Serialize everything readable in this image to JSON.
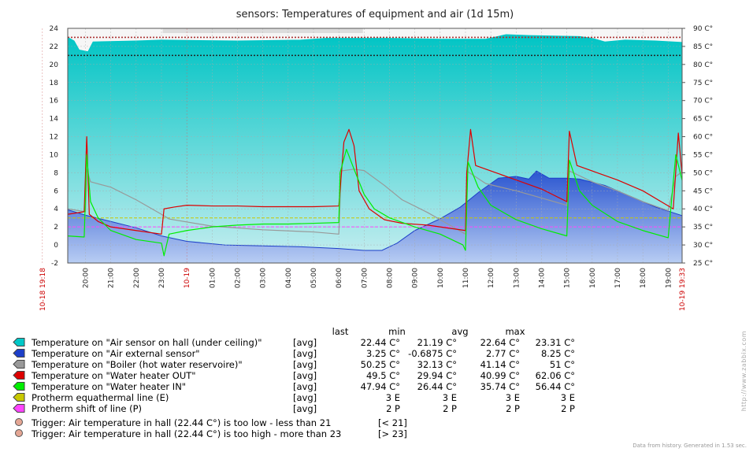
{
  "chart_data": {
    "type": "line",
    "title": "sensors: Temperatures of equipment and air (1d 15m)",
    "left_axis": {
      "min": -2,
      "max": 24,
      "step": 2,
      "ticks": [
        "-2",
        "0",
        "2",
        "4",
        "6",
        "8",
        "10",
        "12",
        "14",
        "16",
        "18",
        "20",
        "22",
        "24"
      ]
    },
    "right_axis": {
      "min": 25,
      "max": 90,
      "step": 5,
      "ticks": [
        "25 C°",
        "30 C°",
        "35 C°",
        "40 C°",
        "45 C°",
        "50 C°",
        "55 C°",
        "60 C°",
        "65 C°",
        "70 C°",
        "75 C°",
        "80 C°",
        "85 C°",
        "90 C°"
      ]
    },
    "x_ticks": [
      {
        "h": 18.3,
        "label": "10-18 19:18",
        "red": true
      },
      {
        "h": 20,
        "label": "20:00"
      },
      {
        "h": 21,
        "label": "21:00"
      },
      {
        "h": 22,
        "label": "22:00"
      },
      {
        "h": 23,
        "label": "23:00"
      },
      {
        "h": 24,
        "label": "10-19",
        "red": true
      },
      {
        "h": 25,
        "label": "01:00"
      },
      {
        "h": 26,
        "label": "02:00"
      },
      {
        "h": 27,
        "label": "03:00"
      },
      {
        "h": 28,
        "label": "04:00"
      },
      {
        "h": 29,
        "label": "05:00"
      },
      {
        "h": 30,
        "label": "06:00"
      },
      {
        "h": 31,
        "label": "07:00"
      },
      {
        "h": 32,
        "label": "08:00"
      },
      {
        "h": 33,
        "label": "09:00"
      },
      {
        "h": 34,
        "label": "10:00"
      },
      {
        "h": 35,
        "label": "11:00"
      },
      {
        "h": 36,
        "label": "12:00"
      },
      {
        "h": 37,
        "label": "13:00"
      },
      {
        "h": 38,
        "label": "14:00"
      },
      {
        "h": 39,
        "label": "15:00"
      },
      {
        "h": 40,
        "label": "16:00"
      },
      {
        "h": 41,
        "label": "17:00"
      },
      {
        "h": 42,
        "label": "18:00"
      },
      {
        "h": 43,
        "label": "19:00"
      },
      {
        "h": 43.55,
        "label": "10-19 19:33",
        "red": true
      }
    ],
    "x_range": [
      19.3,
      43.55
    ],
    "triggers": [
      {
        "value": 21,
        "axis": "left",
        "label": "Trigger: Air temperature in hall (22.44 C°) is too low - less than 21",
        "cond": "[< 21]"
      },
      {
        "value": 23,
        "axis": "left",
        "label": "Trigger: Air temperature in hall (22.44 C°) is too high - more than 23",
        "cond": "[> 23]"
      }
    ],
    "headers": [
      "last",
      "min",
      "avg",
      "max"
    ],
    "series": [
      {
        "name": "Temperature on \"Air sensor on hall (under ceiling)\"",
        "fn": "[avg]",
        "color": "#00c8c8",
        "axis": "left",
        "style": "area",
        "last": "22.44 C°",
        "min": "21.19 C°",
        "avg": "22.64 C°",
        "max": "23.31 C°",
        "points": [
          [
            19.3,
            23.0
          ],
          [
            19.55,
            22.6
          ],
          [
            19.75,
            21.6
          ],
          [
            20.1,
            21.4
          ],
          [
            20.3,
            22.5
          ],
          [
            22.0,
            22.6
          ],
          [
            23.0,
            22.7
          ],
          [
            26.0,
            22.6
          ],
          [
            28.5,
            22.7
          ],
          [
            29.5,
            22.9
          ],
          [
            32.0,
            22.9
          ],
          [
            34.0,
            22.8
          ],
          [
            35.8,
            22.8
          ],
          [
            36.6,
            23.3
          ],
          [
            37.5,
            23.2
          ],
          [
            39.5,
            23.1
          ],
          [
            40.0,
            22.9
          ],
          [
            40.5,
            22.5
          ],
          [
            41.3,
            22.7
          ],
          [
            42.5,
            22.6
          ],
          [
            43.2,
            22.5
          ],
          [
            43.55,
            22.44
          ]
        ]
      },
      {
        "name": "Temperature on \"Air external sensor\"",
        "fn": "[avg]",
        "color": "#1d3fc9",
        "axis": "left",
        "style": "area",
        "last": "3.25 C°",
        "min": "-0.6875 C°",
        "avg": "2.77 C°",
        "max": "8.25 C°",
        "points": [
          [
            19.3,
            3.9
          ],
          [
            20.0,
            3.3
          ],
          [
            21.0,
            2.6
          ],
          [
            22.0,
            1.9
          ],
          [
            23.0,
            1.0
          ],
          [
            24.0,
            0.4
          ],
          [
            25.5,
            0.0
          ],
          [
            27.0,
            -0.1
          ],
          [
            28.5,
            -0.2
          ],
          [
            30.0,
            -0.4
          ],
          [
            31.0,
            -0.6
          ],
          [
            31.7,
            -0.6
          ],
          [
            32.3,
            0.2
          ],
          [
            33.0,
            1.6
          ],
          [
            34.0,
            2.9
          ],
          [
            34.8,
            4.2
          ],
          [
            35.5,
            5.8
          ],
          [
            36.3,
            7.4
          ],
          [
            37.0,
            7.6
          ],
          [
            37.5,
            7.3
          ],
          [
            37.8,
            8.2
          ],
          [
            38.3,
            7.4
          ],
          [
            39.0,
            7.4
          ],
          [
            39.5,
            7.3
          ],
          [
            40.5,
            6.6
          ],
          [
            41.5,
            5.4
          ],
          [
            42.5,
            4.2
          ],
          [
            43.55,
            3.25
          ]
        ]
      },
      {
        "name": "Temperature on \"Boiler (hot water reservoire)\"",
        "fn": "[avg]",
        "color": "#999999",
        "axis": "right",
        "style": "line",
        "last": "50.25 C°",
        "min": "32.13 C°",
        "avg": "41.14 C°",
        "max": "51 C°",
        "points": [
          [
            19.3,
            40.0
          ],
          [
            20.0,
            39.2
          ],
          [
            20.05,
            51
          ],
          [
            20.2,
            47.5
          ],
          [
            21.0,
            46
          ],
          [
            22.0,
            42.5
          ],
          [
            23.0,
            38.5
          ],
          [
            23.3,
            37.2
          ],
          [
            25.0,
            35.2
          ],
          [
            27.0,
            34.2
          ],
          [
            29.0,
            33.6
          ],
          [
            30.0,
            33.0
          ],
          [
            30.1,
            50.5
          ],
          [
            30.6,
            51.0
          ],
          [
            31.0,
            50.6
          ],
          [
            31.8,
            46.5
          ],
          [
            32.5,
            42.5
          ],
          [
            33.5,
            39.0
          ],
          [
            34.5,
            35.0
          ],
          [
            35.0,
            33.0
          ],
          [
            35.05,
            50.5
          ],
          [
            35.8,
            47.0
          ],
          [
            37.0,
            45.0
          ],
          [
            38.0,
            43.0
          ],
          [
            39.0,
            41.0
          ],
          [
            39.1,
            50.5
          ],
          [
            40.0,
            47.5
          ],
          [
            41.0,
            45.0
          ],
          [
            42.0,
            42.0
          ],
          [
            43.0,
            39.5
          ],
          [
            43.3,
            49.0
          ],
          [
            43.55,
            50.25
          ]
        ]
      },
      {
        "name": "Temperature on \"Water heater OUT\"",
        "fn": "[avg]",
        "color": "#dd0000",
        "axis": "right",
        "style": "line",
        "last": "49.5 C°",
        "min": "29.94 C°",
        "avg": "40.99 C°",
        "max": "62.06 C°",
        "points": [
          [
            19.3,
            38.5
          ],
          [
            19.95,
            39.2
          ],
          [
            20.05,
            60.0
          ],
          [
            20.15,
            38.5
          ],
          [
            20.5,
            36.5
          ],
          [
            21.0,
            35.0
          ],
          [
            22.0,
            34.0
          ],
          [
            23.0,
            33.0
          ],
          [
            23.1,
            40.0
          ],
          [
            23.5,
            40.5
          ],
          [
            24.0,
            41.0
          ],
          [
            25.0,
            40.8
          ],
          [
            26.0,
            40.8
          ],
          [
            27.0,
            40.6
          ],
          [
            28.0,
            40.6
          ],
          [
            29.0,
            40.6
          ],
          [
            30.0,
            40.8
          ],
          [
            30.2,
            58.5
          ],
          [
            30.4,
            62.0
          ],
          [
            30.6,
            57.5
          ],
          [
            30.8,
            45.0
          ],
          [
            31.2,
            40.0
          ],
          [
            31.8,
            37.0
          ],
          [
            32.5,
            36.0
          ],
          [
            33.5,
            35.5
          ],
          [
            35.0,
            34.0
          ],
          [
            35.05,
            50.0
          ],
          [
            35.2,
            62.0
          ],
          [
            35.4,
            52.0
          ],
          [
            36.0,
            50.5
          ],
          [
            37.0,
            48.0
          ],
          [
            38.0,
            45.5
          ],
          [
            39.0,
            42.0
          ],
          [
            39.1,
            61.5
          ],
          [
            39.4,
            52.0
          ],
          [
            40.0,
            50.5
          ],
          [
            41.0,
            48.0
          ],
          [
            42.0,
            45.0
          ],
          [
            43.2,
            40.0
          ],
          [
            43.4,
            61.0
          ],
          [
            43.55,
            49.5
          ]
        ]
      },
      {
        "name": "Temperature on \"Water heater IN\"",
        "fn": "[avg]",
        "color": "#00ee00",
        "axis": "right",
        "style": "line",
        "last": "47.94 C°",
        "min": "26.44 C°",
        "avg": "35.74 C°",
        "max": "56.44 C°",
        "points": [
          [
            19.3,
            32.5
          ],
          [
            19.95,
            32.2
          ],
          [
            20.05,
            55.0
          ],
          [
            20.2,
            42.0
          ],
          [
            20.5,
            37.5
          ],
          [
            21.0,
            34.0
          ],
          [
            22.0,
            31.5
          ],
          [
            23.0,
            30.5
          ],
          [
            23.1,
            27.0
          ],
          [
            23.3,
            33.0
          ],
          [
            24.0,
            34.0
          ],
          [
            25.0,
            35.0
          ],
          [
            26.0,
            35.5
          ],
          [
            27.0,
            35.8
          ],
          [
            28.0,
            35.8
          ],
          [
            29.0,
            36.0
          ],
          [
            30.0,
            36.2
          ],
          [
            30.05,
            50.0
          ],
          [
            30.3,
            56.5
          ],
          [
            30.6,
            51.0
          ],
          [
            31.0,
            44.0
          ],
          [
            31.4,
            40.0
          ],
          [
            32.0,
            37.5
          ],
          [
            33.0,
            35.0
          ],
          [
            34.0,
            33.0
          ],
          [
            34.9,
            30.0
          ],
          [
            35.0,
            28.5
          ],
          [
            35.1,
            53.0
          ],
          [
            35.5,
            46.0
          ],
          [
            36.0,
            41.0
          ],
          [
            37.0,
            37.0
          ],
          [
            38.0,
            34.5
          ],
          [
            39.0,
            32.5
          ],
          [
            39.1,
            53.5
          ],
          [
            39.5,
            45.0
          ],
          [
            40.0,
            41.0
          ],
          [
            41.0,
            36.5
          ],
          [
            42.0,
            34.0
          ],
          [
            43.0,
            32.0
          ],
          [
            43.3,
            55.0
          ],
          [
            43.55,
            47.94
          ]
        ]
      },
      {
        "name": "Protherm equathermal line (E)",
        "fn": "[avg]",
        "color": "#c8c800",
        "axis": "left",
        "style": "dash",
        "last": "3 E",
        "min": "3 E",
        "avg": "3 E",
        "max": "3 E",
        "value": 3
      },
      {
        "name": "Protherm shift of line (P)",
        "fn": "[avg]",
        "color": "#ff44ff",
        "axis": "left",
        "style": "dash",
        "last": "2 P",
        "min": "2 P",
        "avg": "2 P",
        "max": "2 P",
        "value": 2
      }
    ],
    "grid": true
  },
  "footer": "Data from history. Generated in 1.53 sec.",
  "watermark": "http://www.zabbix.com"
}
